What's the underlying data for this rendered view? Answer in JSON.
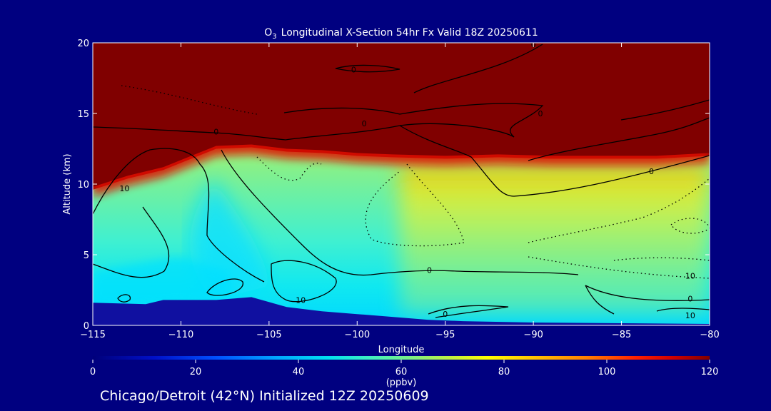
{
  "chart_data": {
    "type": "heatmap",
    "title_main": "Longitudinal X-Section 54hr  Fx Valid 18Z 20250611",
    "title_species": "O",
    "title_species_sub": "3",
    "xlabel": "Longitude",
    "ylabel": "Altitude (km)",
    "xlim": [
      -115,
      -80
    ],
    "ylim": [
      0,
      20
    ],
    "x_ticks": [
      -115,
      -110,
      -105,
      -100,
      -95,
      -90,
      -85,
      -80
    ],
    "y_ticks": [
      0,
      5,
      10,
      15,
      20
    ],
    "x_tick_labels": [
      "−115",
      "−110",
      "−105",
      "−100",
      "−95",
      "−90",
      "−85",
      "−80"
    ],
    "y_tick_labels": [
      "0",
      "5",
      "10",
      "15",
      "20"
    ],
    "colorbar": {
      "label": "(ppbv)",
      "ticks": [
        0,
        20,
        40,
        60,
        80,
        100,
        120
      ],
      "tick_labels": [
        "0",
        "20",
        "40",
        "60",
        "80",
        "100",
        "120"
      ],
      "range": [
        0,
        120
      ]
    },
    "tropopause_altitude_km": [
      [
        -115,
        9.6
      ],
      [
        -113,
        10.4
      ],
      [
        -111,
        11.0
      ],
      [
        -109,
        12.0
      ],
      [
        -108,
        12.5
      ],
      [
        -106,
        12.6
      ],
      [
        -104,
        12.3
      ],
      [
        -102,
        12.2
      ],
      [
        -100,
        12.0
      ],
      [
        -98,
        11.9
      ],
      [
        -95,
        11.8
      ],
      [
        -92,
        11.9
      ],
      [
        -89,
        11.8
      ],
      [
        -86,
        11.8
      ],
      [
        -83,
        11.8
      ],
      [
        -80,
        12.0
      ]
    ],
    "terrain_altitude_km": [
      [
        -115,
        1.6
      ],
      [
        -112,
        1.5
      ],
      [
        -111,
        1.8
      ],
      [
        -108,
        1.8
      ],
      [
        -106,
        2.0
      ],
      [
        -104,
        1.3
      ],
      [
        -102,
        1.0
      ],
      [
        -100,
        0.8
      ],
      [
        -98,
        0.6
      ],
      [
        -96,
        0.4
      ],
      [
        -94,
        0.3
      ],
      [
        -90,
        0.2
      ],
      [
        -85,
        0.15
      ],
      [
        -80,
        0.1
      ]
    ],
    "contour_labels": [
      {
        "text": "0",
        "lon": -100.2,
        "alt": 17.9
      },
      {
        "text": "0",
        "lon": -89.6,
        "alt": 14.8
      },
      {
        "text": "0",
        "lon": -99.6,
        "alt": 14.1
      },
      {
        "text": "0",
        "lon": -108.0,
        "alt": 13.5
      },
      {
        "text": "0",
        "lon": -90.0,
        "alt": 19.7
      },
      {
        "text": "0",
        "lon": -83.3,
        "alt": 10.7
      },
      {
        "text": "10",
        "lon": -113.2,
        "alt": 9.5
      },
      {
        "text": "0",
        "lon": -95.9,
        "alt": 3.7
      },
      {
        "text": "10",
        "lon": -103.2,
        "alt": 1.6
      },
      {
        "text": "0",
        "lon": -95.0,
        "alt": 0.6
      },
      {
        "text": "10",
        "lon": -81.1,
        "alt": 3.3
      },
      {
        "text": "0",
        "lon": -81.1,
        "alt": 1.7
      },
      {
        "text": "10",
        "lon": -81.1,
        "alt": 0.5
      }
    ]
  },
  "footer": {
    "caption": "Chicago/Detroit (42°N) Initialized 12Z 20250609"
  }
}
